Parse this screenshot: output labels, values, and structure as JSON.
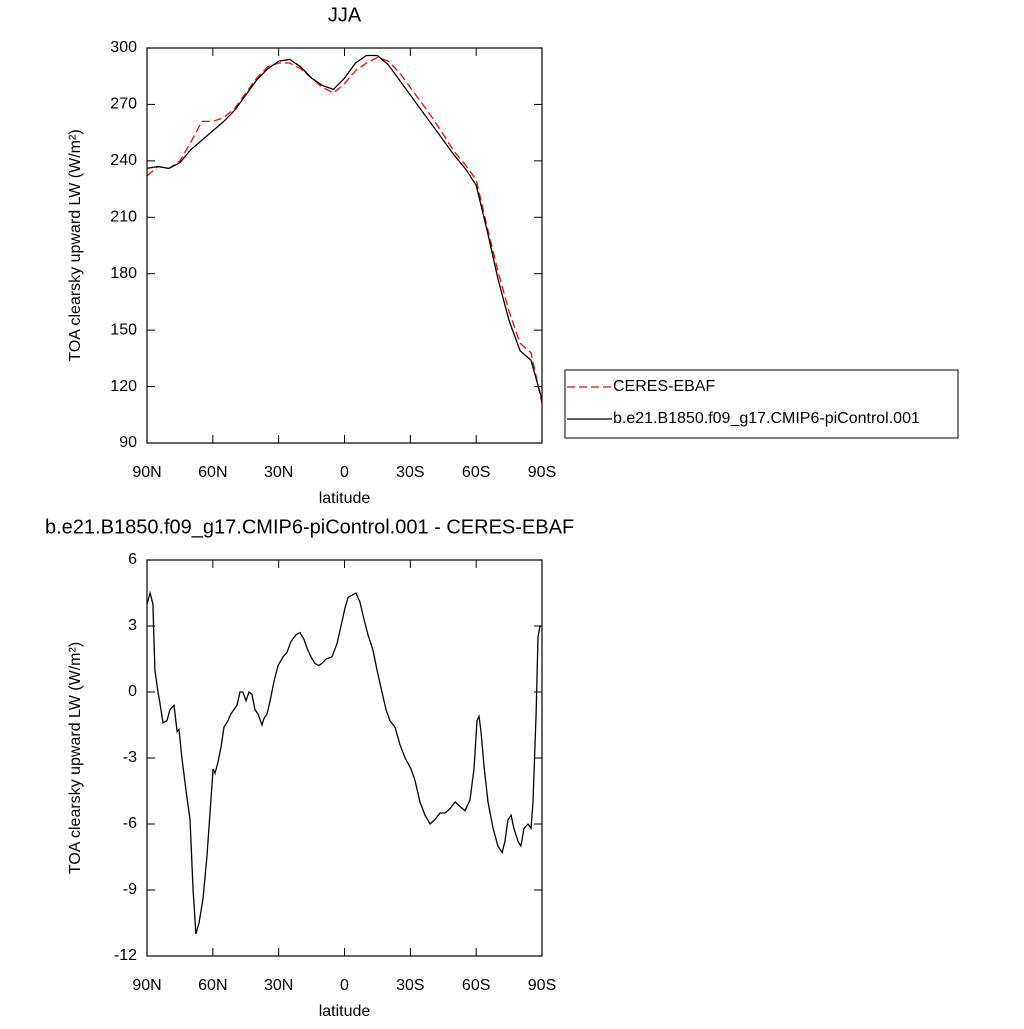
{
  "chart_data": [
    {
      "type": "line",
      "title": "JJA",
      "x_label": "latitude",
      "y_label": "TOA clearsky upward LW (W/m²)",
      "x": [
        90,
        85,
        80,
        75,
        70,
        65,
        60,
        55,
        50,
        45,
        40,
        35,
        30,
        25,
        20,
        15,
        10,
        5,
        0,
        -5,
        -10,
        -15,
        -20,
        -25,
        -30,
        -35,
        -40,
        -45,
        -50,
        -55,
        -60,
        -65,
        -70,
        -75,
        -80,
        -85,
        -90
      ],
      "series": [
        {
          "name": "CERES-EBAF",
          "color": "#ff0000",
          "dash": "dashed",
          "values": [
            232,
            237,
            236,
            240,
            250,
            261,
            261,
            263,
            268,
            276,
            284,
            290,
            292,
            292,
            289,
            284,
            279,
            276,
            281,
            288,
            292,
            295,
            293,
            287,
            279,
            271,
            263,
            254,
            245,
            238,
            230,
            205,
            181,
            160,
            143,
            138,
            111
          ]
        },
        {
          "name": "b.e21.B1850.f09_g17.CMIP6-piControl.001",
          "color": "#000000",
          "dash": "solid",
          "values": [
            236,
            237,
            236,
            239,
            246,
            251,
            256,
            261,
            267,
            275,
            283,
            289,
            293,
            294,
            290,
            284,
            280,
            278,
            284,
            292,
            296,
            296,
            291,
            283,
            275,
            267,
            259,
            251,
            243,
            236,
            227,
            203,
            177,
            155,
            139,
            134,
            113
          ]
        }
      ],
      "xlim": [
        90,
        -90
      ],
      "xticks": [
        {
          "value": 90,
          "label": "90N"
        },
        {
          "value": 60,
          "label": "60N"
        },
        {
          "value": 30,
          "label": "30N"
        },
        0,
        {
          "value": -30,
          "label": "30S"
        },
        {
          "value": -60,
          "label": "60S"
        },
        {
          "value": -90,
          "label": "90S"
        }
      ],
      "ylim": [
        90,
        300
      ],
      "yticks": [
        90,
        120,
        150,
        180,
        210,
        240,
        270,
        300
      ],
      "legend": "right"
    },
    {
      "type": "line",
      "title": "b.e21.B1850.f09_g17.CMIP6-piControl.001 - CERES-EBAF",
      "x_label": "latitude",
      "y_label": "TOA clearsky upward LW (W/m²)",
      "color": "#000000",
      "x": [
        90,
        88.6,
        87.3,
        86.4,
        85.0,
        84.1,
        82.7,
        80.9,
        79.5,
        77.7,
        76.3,
        75.4,
        74.1,
        72.2,
        70.4,
        69.0,
        67.7,
        66.3,
        64.5,
        62.7,
        61.3,
        59.9,
        59.0,
        57.7,
        56.3,
        54.9,
        53.1,
        51.8,
        50.4,
        49.0,
        47.6,
        46.3,
        44.9,
        43.5,
        42.2,
        40.8,
        39.4,
        37.6,
        36.7,
        35.3,
        33.9,
        32.1,
        30.3,
        28.0,
        26.2,
        24.4,
        22.1,
        20.3,
        18.5,
        17.1,
        15.3,
        13.5,
        11.7,
        10.3,
        8.4,
        5.7,
        3.4,
        1.6,
        -0.2,
        -1.6,
        -3.4,
        -5.2,
        -7.0,
        -8.9,
        -10.7,
        -13.0,
        -14.8,
        -17.1,
        -18.9,
        -20.7,
        -23.0,
        -25.3,
        -27.6,
        -30.3,
        -32.1,
        -34.4,
        -36.7,
        -39.0,
        -41.2,
        -43.5,
        -45.8,
        -48.1,
        -50.4,
        -52.6,
        -54.9,
        -57.2,
        -59.0,
        -60.4,
        -61.3,
        -62.2,
        -63.6,
        -65.4,
        -67.7,
        -69.9,
        -71.8,
        -73.1,
        -74.5,
        -75.9,
        -77.2,
        -79.1,
        -80.4,
        -81.8,
        -83.6,
        -85.0,
        -85.9,
        -87.3,
        -88.2,
        -89.1,
        -90
      ],
      "values": [
        4,
        4.5,
        4,
        1,
        0,
        -0.5,
        -1.4,
        -1.3,
        -0.8,
        -0.6,
        -1.8,
        -1.7,
        -3,
        -4.5,
        -5.8,
        -9,
        -11,
        -10.5,
        -9.4,
        -7.5,
        -5.5,
        -3.5,
        -3.7,
        -3.2,
        -2.5,
        -1.6,
        -1.3,
        -1,
        -0.8,
        -0.6,
        0,
        0,
        -0.4,
        0,
        -0.1,
        -0.8,
        -1,
        -1.5,
        -1.2,
        -1,
        -0.4,
        0.5,
        1.2,
        1.6,
        1.8,
        2.3,
        2.6,
        2.7,
        2.4,
        2,
        1.6,
        1.3,
        1.2,
        1.3,
        1.5,
        1.6,
        2.2,
        3,
        3.8,
        4.3,
        4.4,
        4.5,
        4.1,
        3.3,
        2.6,
        1.9,
        1,
        0,
        -0.8,
        -1.3,
        -1.6,
        -2.4,
        -3,
        -3.5,
        -4,
        -5,
        -5.6,
        -6,
        -5.8,
        -5.5,
        -5.5,
        -5.3,
        -5,
        -5.2,
        -5.4,
        -4.9,
        -3.5,
        -1.3,
        -1.1,
        -1.8,
        -3.4,
        -5,
        -6.2,
        -7,
        -7.3,
        -6.8,
        -5.8,
        -5.6,
        -6.2,
        -6.8,
        -7,
        -6.2,
        -6,
        -6.2,
        -5,
        -1,
        2.5,
        3,
        3
      ],
      "xlim": [
        90,
        -90
      ],
      "xticks": [
        {
          "value": 90,
          "label": "90N"
        },
        {
          "value": 60,
          "label": "60N"
        },
        {
          "value": 30,
          "label": "30N"
        },
        0,
        {
          "value": -30,
          "label": "30S"
        },
        {
          "value": -60,
          "label": "60S"
        },
        {
          "value": -90,
          "label": "90S"
        }
      ],
      "ylim": [
        -12,
        6
      ],
      "yticks": [
        -12,
        -9,
        -6,
        -3,
        0,
        3,
        6
      ]
    }
  ]
}
